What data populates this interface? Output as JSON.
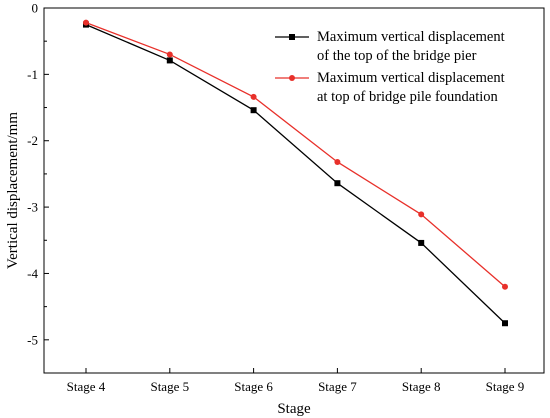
{
  "chart_data": {
    "type": "line",
    "title": "",
    "xlabel": "Stage",
    "ylabel": "Vertical displacement/mm",
    "categories": [
      "Stage 4",
      "Stage 5",
      "Stage 6",
      "Stage 7",
      "Stage 8",
      "Stage 9"
    ],
    "ylim": [
      -5.5,
      0
    ],
    "yticks": [
      0,
      -1,
      -2,
      -3,
      -4,
      -5
    ],
    "grid": false,
    "legend_position": "top-right",
    "series": [
      {
        "name_lines": [
          "Maximum vertical displacement",
          "of the top of the bridge pier"
        ],
        "color": "#000000",
        "marker": "square",
        "values": [
          -0.25,
          -0.79,
          -1.54,
          -2.64,
          -3.54,
          -4.75
        ]
      },
      {
        "name_lines": [
          "Maximum vertical displacement",
          "at top of bridge pile foundation"
        ],
        "color": "#e8302a",
        "marker": "circle",
        "values": [
          -0.22,
          -0.7,
          -1.34,
          -2.32,
          -3.11,
          -4.2
        ]
      }
    ]
  }
}
